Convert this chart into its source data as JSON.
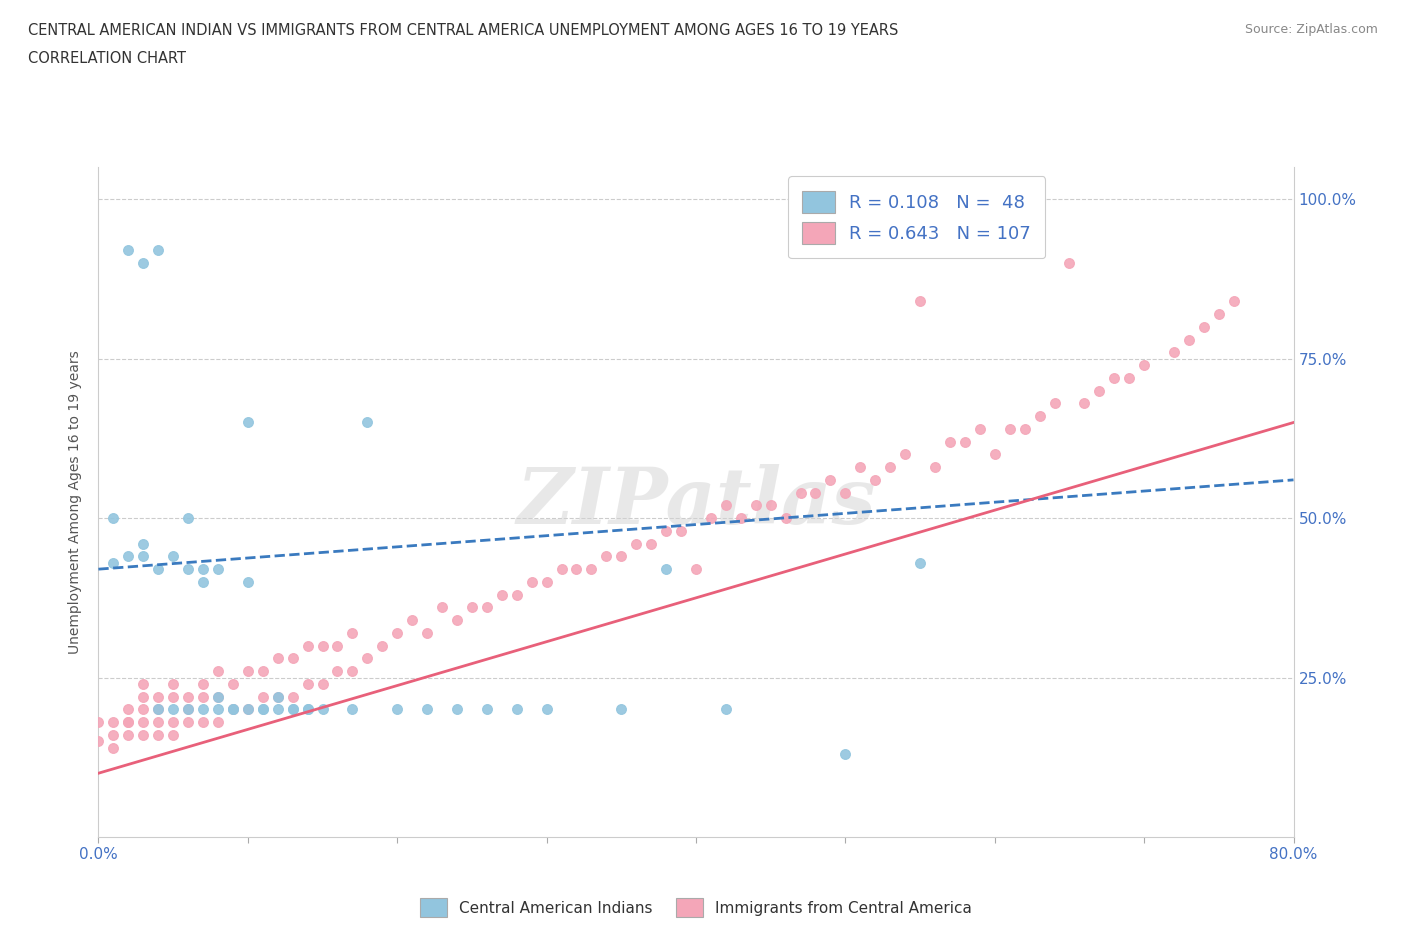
{
  "title_line1": "CENTRAL AMERICAN INDIAN VS IMMIGRANTS FROM CENTRAL AMERICA UNEMPLOYMENT AMONG AGES 16 TO 19 YEARS",
  "title_line2": "CORRELATION CHART",
  "source_text": "Source: ZipAtlas.com",
  "ylabel": "Unemployment Among Ages 16 to 19 years",
  "blue_R": 0.108,
  "blue_N": 48,
  "pink_R": 0.643,
  "pink_N": 107,
  "blue_color": "#92c5de",
  "pink_color": "#f4a6b8",
  "blue_line_color": "#3a7abf",
  "pink_line_color": "#e8607a",
  "legend_label_blue": "Central American Indians",
  "legend_label_pink": "Immigrants from Central America",
  "blue_scatter_x": [
    0.01,
    0.01,
    0.02,
    0.02,
    0.03,
    0.03,
    0.03,
    0.04,
    0.04,
    0.04,
    0.05,
    0.05,
    0.06,
    0.06,
    0.06,
    0.07,
    0.07,
    0.07,
    0.08,
    0.08,
    0.08,
    0.09,
    0.09,
    0.1,
    0.1,
    0.1,
    0.11,
    0.11,
    0.12,
    0.12,
    0.13,
    0.13,
    0.14,
    0.14,
    0.15,
    0.17,
    0.18,
    0.2,
    0.22,
    0.24,
    0.26,
    0.28,
    0.3,
    0.35,
    0.38,
    0.42,
    0.5,
    0.55
  ],
  "blue_scatter_y": [
    0.43,
    0.5,
    0.44,
    0.92,
    0.44,
    0.46,
    0.9,
    0.2,
    0.42,
    0.92,
    0.2,
    0.44,
    0.2,
    0.42,
    0.5,
    0.2,
    0.4,
    0.42,
    0.2,
    0.22,
    0.42,
    0.2,
    0.2,
    0.2,
    0.4,
    0.65,
    0.2,
    0.2,
    0.2,
    0.22,
    0.2,
    0.2,
    0.2,
    0.2,
    0.2,
    0.2,
    0.65,
    0.2,
    0.2,
    0.2,
    0.2,
    0.2,
    0.2,
    0.2,
    0.42,
    0.2,
    0.13,
    0.43
  ],
  "pink_scatter_x": [
    0.0,
    0.0,
    0.01,
    0.01,
    0.01,
    0.02,
    0.02,
    0.02,
    0.02,
    0.03,
    0.03,
    0.03,
    0.03,
    0.03,
    0.04,
    0.04,
    0.04,
    0.04,
    0.05,
    0.05,
    0.05,
    0.05,
    0.06,
    0.06,
    0.06,
    0.07,
    0.07,
    0.07,
    0.08,
    0.08,
    0.08,
    0.09,
    0.09,
    0.1,
    0.1,
    0.11,
    0.11,
    0.12,
    0.12,
    0.13,
    0.13,
    0.14,
    0.14,
    0.15,
    0.15,
    0.16,
    0.16,
    0.17,
    0.17,
    0.18,
    0.19,
    0.2,
    0.21,
    0.22,
    0.23,
    0.24,
    0.25,
    0.26,
    0.27,
    0.28,
    0.29,
    0.3,
    0.31,
    0.32,
    0.33,
    0.34,
    0.35,
    0.36,
    0.37,
    0.38,
    0.39,
    0.4,
    0.41,
    0.42,
    0.43,
    0.44,
    0.45,
    0.46,
    0.47,
    0.48,
    0.49,
    0.5,
    0.51,
    0.52,
    0.53,
    0.54,
    0.55,
    0.56,
    0.57,
    0.58,
    0.59,
    0.6,
    0.61,
    0.62,
    0.63,
    0.64,
    0.65,
    0.66,
    0.67,
    0.68,
    0.69,
    0.7,
    0.72,
    0.73,
    0.74,
    0.75,
    0.76
  ],
  "pink_scatter_y": [
    0.15,
    0.18,
    0.14,
    0.16,
    0.18,
    0.16,
    0.18,
    0.18,
    0.2,
    0.16,
    0.18,
    0.2,
    0.22,
    0.24,
    0.16,
    0.18,
    0.2,
    0.22,
    0.16,
    0.18,
    0.22,
    0.24,
    0.18,
    0.2,
    0.22,
    0.18,
    0.22,
    0.24,
    0.18,
    0.22,
    0.26,
    0.2,
    0.24,
    0.2,
    0.26,
    0.22,
    0.26,
    0.22,
    0.28,
    0.22,
    0.28,
    0.24,
    0.3,
    0.24,
    0.3,
    0.26,
    0.3,
    0.26,
    0.32,
    0.28,
    0.3,
    0.32,
    0.34,
    0.32,
    0.36,
    0.34,
    0.36,
    0.36,
    0.38,
    0.38,
    0.4,
    0.4,
    0.42,
    0.42,
    0.42,
    0.44,
    0.44,
    0.46,
    0.46,
    0.48,
    0.48,
    0.42,
    0.5,
    0.52,
    0.5,
    0.52,
    0.52,
    0.5,
    0.54,
    0.54,
    0.56,
    0.54,
    0.58,
    0.56,
    0.58,
    0.6,
    0.84,
    0.58,
    0.62,
    0.62,
    0.64,
    0.6,
    0.64,
    0.64,
    0.66,
    0.68,
    0.9,
    0.68,
    0.7,
    0.72,
    0.72,
    0.74,
    0.76,
    0.78,
    0.8,
    0.82,
    0.84
  ],
  "blue_line_x": [
    0.0,
    0.8
  ],
  "blue_line_y": [
    0.42,
    0.56
  ],
  "pink_line_x": [
    0.0,
    0.8
  ],
  "pink_line_y": [
    0.1,
    0.65
  ],
  "xmin": 0.0,
  "xmax": 0.8,
  "ymin": 0.0,
  "ymax": 1.05,
  "yticks": [
    0.25,
    0.5,
    0.75,
    1.0
  ],
  "ytick_labels": [
    "25.0%",
    "50.0%",
    "75.0%",
    "100.0%"
  ],
  "xtick_left_label": "0.0%",
  "xtick_right_label": "80.0%"
}
